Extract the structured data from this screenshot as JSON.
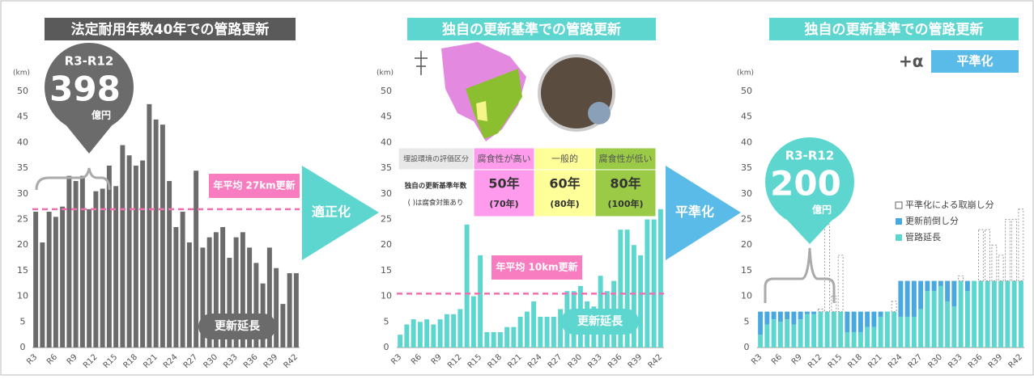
{
  "chart_data": [
    {
      "type": "bar",
      "title": "法定耐用年数40年での管路更新",
      "y_unit": "(km)",
      "categories": [
        "R3",
        null,
        null,
        "R6",
        null,
        null,
        "R9",
        null,
        null,
        "R12",
        null,
        null,
        "R15",
        null,
        null,
        "R18",
        null,
        null,
        "R21",
        null,
        null,
        "R24",
        null,
        null,
        "R27",
        null,
        null,
        "R30",
        null,
        null,
        "R33",
        null,
        null,
        "R36",
        null,
        null,
        "R39",
        null,
        null,
        "R42"
      ],
      "values": [
        26.5,
        20.5,
        26.5,
        25.5,
        27.5,
        33.5,
        32.5,
        33.5,
        27,
        30.5,
        31,
        35.5,
        31.5,
        39.5,
        37.5,
        35.5,
        36.5,
        47.5,
        44.5,
        43.5,
        32.5,
        23.5,
        26.5,
        20.5,
        34.5,
        19.5,
        21.5,
        22.5,
        23.5,
        17.5,
        21.5,
        22.5,
        19.5,
        16.5,
        12.5,
        19.5,
        15.5,
        8.5,
        14.5,
        14.5
      ],
      "color": "#6b6b6b",
      "ylim": [
        0,
        50
      ],
      "yticks": [
        0,
        5,
        10,
        15,
        20,
        25,
        30,
        35,
        40,
        45,
        50
      ],
      "grid": false,
      "average": 27,
      "average_label": "年平均 27km更新",
      "series_label": "更新延長",
      "balloon": {
        "period": "R3-R12",
        "amount": 398,
        "unit": "億円"
      }
    },
    {
      "type": "bar",
      "title": "独自の更新基準での管路更新",
      "y_unit": "(km)",
      "categories": [
        "R3",
        null,
        null,
        "R6",
        null,
        null,
        "R9",
        null,
        null,
        "R12",
        null,
        null,
        "R15",
        null,
        null,
        "R18",
        null,
        null,
        "R21",
        null,
        null,
        "R24",
        null,
        null,
        "R27",
        null,
        null,
        "R30",
        null,
        null,
        "R33",
        null,
        null,
        "R36",
        null,
        null,
        "R39",
        null,
        null,
        "R42"
      ],
      "values": [
        2.5,
        4.5,
        5.5,
        5,
        5.5,
        4.5,
        5.5,
        6.5,
        6.5,
        7.5,
        24,
        10,
        18,
        3,
        3,
        3,
        4,
        4,
        6,
        7,
        9,
        6,
        6,
        6,
        7.5,
        11,
        11,
        12,
        9,
        8,
        14,
        11,
        13,
        23,
        23,
        20,
        18,
        25,
        25,
        27
      ],
      "color": "#5ed6d0",
      "ylim": [
        0,
        50
      ],
      "yticks": [
        0,
        5,
        10,
        15,
        20,
        25,
        30,
        35,
        40,
        45,
        50
      ],
      "grid": false,
      "average": 10.5,
      "average_label": "年平均 10km更新",
      "series_label": "更新延長"
    },
    {
      "type": "stacked_bar",
      "title": "独自の更新基準での管路更新",
      "y_unit": "(km)",
      "tag_prefix": "+α",
      "tag": "平準化",
      "categories": [
        "R3",
        null,
        null,
        "R6",
        null,
        null,
        "R9",
        null,
        null,
        "R12",
        null,
        null,
        "R15",
        null,
        null,
        "R18",
        null,
        null,
        "R21",
        null,
        null,
        "R24",
        null,
        null,
        "R27",
        null,
        null,
        "R30",
        null,
        null,
        "R33",
        null,
        null,
        "R36",
        null,
        null,
        "R39",
        null,
        null,
        "R42"
      ],
      "series": [
        {
          "name": "管路延長",
          "color": "#5ed6d0",
          "values": [
            2.5,
            4.5,
            5.5,
            5,
            5.5,
            4.5,
            5.5,
            6.5,
            6.5,
            7,
            7,
            7,
            7,
            3,
            3,
            3,
            4,
            4,
            6,
            7,
            7,
            6,
            6,
            6,
            7.5,
            11,
            11,
            12,
            9,
            8,
            13,
            11,
            13,
            13,
            13,
            13,
            13,
            13,
            13,
            13
          ]
        },
        {
          "name": "更新前倒し分",
          "color": "#4aa8e0",
          "values": [
            4.5,
            2.5,
            1.5,
            2,
            1.5,
            2.5,
            1.5,
            0.5,
            0.5,
            0,
            0,
            0,
            0,
            4,
            4,
            4,
            3,
            3,
            1,
            0,
            0,
            7,
            7,
            7,
            5.5,
            2,
            2,
            1,
            4,
            5,
            0,
            2,
            0,
            0,
            0,
            0,
            0,
            0,
            0,
            0
          ]
        },
        {
          "name": "平準化による取崩し分",
          "color": "#ffffff",
          "values": [
            0,
            0,
            0,
            0,
            0,
            0,
            0,
            0,
            0,
            0.5,
            17,
            3,
            11,
            0,
            0,
            0,
            0,
            0,
            0,
            0,
            2,
            0,
            0,
            0,
            0,
            0,
            0,
            0,
            0,
            0,
            1,
            0,
            0,
            10,
            10,
            7,
            5,
            12,
            12,
            14
          ]
        }
      ],
      "ylim": [
        0,
        50
      ],
      "yticks": [
        0,
        5,
        10,
        15,
        20,
        25,
        30,
        35,
        40,
        45,
        50
      ],
      "grid": false,
      "balloon": {
        "period": "R3-R12",
        "amount": 200,
        "unit": "億円"
      }
    }
  ],
  "arrows": [
    "適正化",
    "平準化"
  ],
  "criteria_table": {
    "header": [
      "埋設環境の評価区分",
      "腐食性が高い",
      "一般的",
      "腐食性が低い"
    ],
    "row_label": "独自の更新基準年数",
    "row_note": "( )は腐食対策あり",
    "years": [
      "50年",
      "60年",
      "80年"
    ],
    "years_with_protection": [
      "(70年)",
      "(80年)",
      "(100年)"
    ]
  }
}
